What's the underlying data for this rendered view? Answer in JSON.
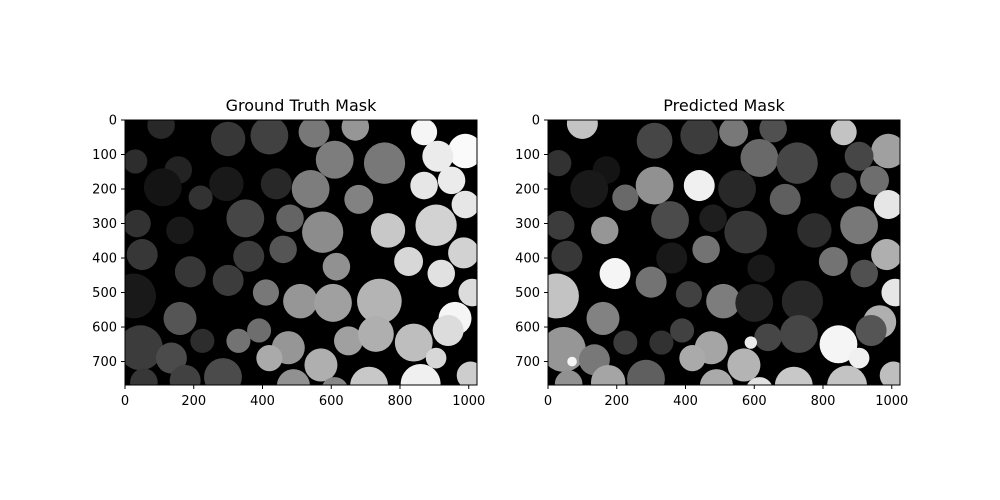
{
  "chart_data": [
    {
      "type": "heatmap",
      "title": "Ground Truth Mask",
      "xlabel": "",
      "ylabel": "",
      "xlim": [
        0,
        1024
      ],
      "ylim": [
        768,
        0
      ],
      "x_ticks": [
        0,
        200,
        400,
        600,
        800,
        1000
      ],
      "y_ticks": [
        0,
        100,
        200,
        300,
        400,
        500,
        600,
        700
      ],
      "colormap": "gray",
      "background_value": 0,
      "objects": [
        {
          "x": 105,
          "y": 15,
          "r": 40,
          "v": 40
        },
        {
          "x": 300,
          "y": 55,
          "r": 50,
          "v": 55
        },
        {
          "x": 420,
          "y": 45,
          "r": 55,
          "v": 65
        },
        {
          "x": 550,
          "y": 35,
          "r": 45,
          "v": 120
        },
        {
          "x": 670,
          "y": 20,
          "r": 40,
          "v": 150
        },
        {
          "x": 870,
          "y": 35,
          "r": 38,
          "v": 245
        },
        {
          "x": 990,
          "y": 90,
          "r": 50,
          "v": 250
        },
        {
          "x": 30,
          "y": 120,
          "r": 35,
          "v": 45
        },
        {
          "x": 155,
          "y": 145,
          "r": 40,
          "v": 35
        },
        {
          "x": 610,
          "y": 115,
          "r": 55,
          "v": 125
        },
        {
          "x": 755,
          "y": 125,
          "r": 60,
          "v": 120
        },
        {
          "x": 910,
          "y": 105,
          "r": 45,
          "v": 235
        },
        {
          "x": 110,
          "y": 195,
          "r": 55,
          "v": 20
        },
        {
          "x": 295,
          "y": 185,
          "r": 50,
          "v": 25
        },
        {
          "x": 440,
          "y": 185,
          "r": 45,
          "v": 40
        },
        {
          "x": 540,
          "y": 200,
          "r": 55,
          "v": 125
        },
        {
          "x": 870,
          "y": 190,
          "r": 40,
          "v": 230
        },
        {
          "x": 950,
          "y": 175,
          "r": 40,
          "v": 235
        },
        {
          "x": 220,
          "y": 225,
          "r": 35,
          "v": 50
        },
        {
          "x": 680,
          "y": 230,
          "r": 42,
          "v": 130
        },
        {
          "x": 990,
          "y": 245,
          "r": 40,
          "v": 230
        },
        {
          "x": 35,
          "y": 300,
          "r": 40,
          "v": 50
        },
        {
          "x": 160,
          "y": 320,
          "r": 40,
          "v": 25
        },
        {
          "x": 350,
          "y": 285,
          "r": 55,
          "v": 70
        },
        {
          "x": 480,
          "y": 285,
          "r": 40,
          "v": 100
        },
        {
          "x": 575,
          "y": 325,
          "r": 60,
          "v": 140
        },
        {
          "x": 765,
          "y": 320,
          "r": 50,
          "v": 200
        },
        {
          "x": 905,
          "y": 305,
          "r": 60,
          "v": 210
        },
        {
          "x": 50,
          "y": 390,
          "r": 45,
          "v": 55
        },
        {
          "x": 360,
          "y": 395,
          "r": 45,
          "v": 60
        },
        {
          "x": 460,
          "y": 375,
          "r": 40,
          "v": 85
        },
        {
          "x": 825,
          "y": 410,
          "r": 42,
          "v": 215
        },
        {
          "x": 985,
          "y": 385,
          "r": 45,
          "v": 210
        },
        {
          "x": 190,
          "y": 440,
          "r": 45,
          "v": 55
        },
        {
          "x": 300,
          "y": 465,
          "r": 45,
          "v": 60
        },
        {
          "x": 615,
          "y": 425,
          "r": 40,
          "v": 145
        },
        {
          "x": 920,
          "y": 445,
          "r": 40,
          "v": 225
        },
        {
          "x": 25,
          "y": 510,
          "r": 65,
          "v": 25
        },
        {
          "x": 410,
          "y": 500,
          "r": 38,
          "v": 120
        },
        {
          "x": 510,
          "y": 525,
          "r": 50,
          "v": 150
        },
        {
          "x": 605,
          "y": 530,
          "r": 55,
          "v": 160
        },
        {
          "x": 740,
          "y": 525,
          "r": 65,
          "v": 180
        },
        {
          "x": 1010,
          "y": 500,
          "r": 40,
          "v": 220
        },
        {
          "x": 160,
          "y": 575,
          "r": 48,
          "v": 85
        },
        {
          "x": 475,
          "y": 660,
          "r": 48,
          "v": 150
        },
        {
          "x": 650,
          "y": 640,
          "r": 42,
          "v": 160
        },
        {
          "x": 730,
          "y": 620,
          "r": 52,
          "v": 175
        },
        {
          "x": 960,
          "y": 575,
          "r": 48,
          "v": 245
        },
        {
          "x": 45,
          "y": 660,
          "r": 65,
          "v": 60
        },
        {
          "x": 225,
          "y": 640,
          "r": 35,
          "v": 45
        },
        {
          "x": 330,
          "y": 640,
          "r": 35,
          "v": 115
        },
        {
          "x": 390,
          "y": 610,
          "r": 35,
          "v": 110
        },
        {
          "x": 840,
          "y": 645,
          "r": 55,
          "v": 190
        },
        {
          "x": 940,
          "y": 610,
          "r": 45,
          "v": 220
        },
        {
          "x": 135,
          "y": 690,
          "r": 45,
          "v": 75
        },
        {
          "x": 420,
          "y": 690,
          "r": 38,
          "v": 170
        },
        {
          "x": 570,
          "y": 710,
          "r": 48,
          "v": 175
        },
        {
          "x": 905,
          "y": 690,
          "r": 30,
          "v": 215
        },
        {
          "x": 285,
          "y": 745,
          "r": 55,
          "v": 75
        },
        {
          "x": 175,
          "y": 755,
          "r": 45,
          "v": 65
        },
        {
          "x": 490,
          "y": 770,
          "r": 48,
          "v": 145
        },
        {
          "x": 710,
          "y": 770,
          "r": 55,
          "v": 200
        },
        {
          "x": 860,
          "y": 765,
          "r": 58,
          "v": 240
        },
        {
          "x": 1005,
          "y": 740,
          "r": 40,
          "v": 205
        },
        {
          "x": 610,
          "y": 785,
          "r": 40,
          "v": 135
        },
        {
          "x": 55,
          "y": 760,
          "r": 40,
          "v": 55
        }
      ]
    },
    {
      "type": "heatmap",
      "title": "Predicted Mask",
      "xlabel": "",
      "ylabel": "",
      "xlim": [
        0,
        1024
      ],
      "ylim": [
        768,
        0
      ],
      "x_ticks": [
        0,
        200,
        400,
        600,
        800,
        1000
      ],
      "y_ticks": [
        0,
        100,
        200,
        300,
        400,
        500,
        600,
        700
      ],
      "colormap": "gray",
      "background_value": 0,
      "objects": [
        {
          "x": 100,
          "y": 10,
          "r": 45,
          "v": 195
        },
        {
          "x": 310,
          "y": 60,
          "r": 52,
          "v": 70
        },
        {
          "x": 440,
          "y": 45,
          "r": 55,
          "v": 60
        },
        {
          "x": 540,
          "y": 35,
          "r": 42,
          "v": 120
        },
        {
          "x": 655,
          "y": 25,
          "r": 40,
          "v": 80
        },
        {
          "x": 860,
          "y": 35,
          "r": 38,
          "v": 195
        },
        {
          "x": 990,
          "y": 90,
          "r": 50,
          "v": 160
        },
        {
          "x": 30,
          "y": 125,
          "r": 38,
          "v": 50
        },
        {
          "x": 170,
          "y": 145,
          "r": 40,
          "v": 20
        },
        {
          "x": 615,
          "y": 110,
          "r": 55,
          "v": 105
        },
        {
          "x": 725,
          "y": 125,
          "r": 60,
          "v": 70
        },
        {
          "x": 905,
          "y": 105,
          "r": 42,
          "v": 70
        },
        {
          "x": 120,
          "y": 200,
          "r": 55,
          "v": 25
        },
        {
          "x": 310,
          "y": 190,
          "r": 55,
          "v": 145
        },
        {
          "x": 440,
          "y": 190,
          "r": 45,
          "v": 240
        },
        {
          "x": 550,
          "y": 200,
          "r": 55,
          "v": 40
        },
        {
          "x": 860,
          "y": 190,
          "r": 38,
          "v": 75
        },
        {
          "x": 950,
          "y": 175,
          "r": 42,
          "v": 110
        },
        {
          "x": 225,
          "y": 225,
          "r": 38,
          "v": 105
        },
        {
          "x": 690,
          "y": 230,
          "r": 45,
          "v": 95
        },
        {
          "x": 990,
          "y": 245,
          "r": 42,
          "v": 230
        },
        {
          "x": 35,
          "y": 305,
          "r": 42,
          "v": 60
        },
        {
          "x": 165,
          "y": 320,
          "r": 40,
          "v": 150
        },
        {
          "x": 355,
          "y": 290,
          "r": 55,
          "v": 75
        },
        {
          "x": 480,
          "y": 285,
          "r": 40,
          "v": 30
        },
        {
          "x": 575,
          "y": 325,
          "r": 62,
          "v": 55
        },
        {
          "x": 775,
          "y": 320,
          "r": 50,
          "v": 45
        },
        {
          "x": 905,
          "y": 305,
          "r": 55,
          "v": 120
        },
        {
          "x": 55,
          "y": 395,
          "r": 45,
          "v": 55
        },
        {
          "x": 360,
          "y": 400,
          "r": 45,
          "v": 25
        },
        {
          "x": 460,
          "y": 375,
          "r": 40,
          "v": 115
        },
        {
          "x": 830,
          "y": 410,
          "r": 42,
          "v": 115
        },
        {
          "x": 985,
          "y": 390,
          "r": 45,
          "v": 175
        },
        {
          "x": 195,
          "y": 445,
          "r": 45,
          "v": 245
        },
        {
          "x": 300,
          "y": 470,
          "r": 45,
          "v": 115
        },
        {
          "x": 620,
          "y": 430,
          "r": 40,
          "v": 25
        },
        {
          "x": 920,
          "y": 445,
          "r": 40,
          "v": 80
        },
        {
          "x": 25,
          "y": 510,
          "r": 65,
          "v": 195
        },
        {
          "x": 410,
          "y": 505,
          "r": 38,
          "v": 65
        },
        {
          "x": 510,
          "y": 525,
          "r": 50,
          "v": 125
        },
        {
          "x": 600,
          "y": 530,
          "r": 55,
          "v": 35
        },
        {
          "x": 740,
          "y": 525,
          "r": 60,
          "v": 40
        },
        {
          "x": 1010,
          "y": 500,
          "r": 40,
          "v": 230
        },
        {
          "x": 160,
          "y": 575,
          "r": 48,
          "v": 130
        },
        {
          "x": 475,
          "y": 660,
          "r": 48,
          "v": 165
        },
        {
          "x": 640,
          "y": 630,
          "r": 40,
          "v": 70
        },
        {
          "x": 730,
          "y": 620,
          "r": 55,
          "v": 70
        },
        {
          "x": 965,
          "y": 585,
          "r": 48,
          "v": 175
        },
        {
          "x": 45,
          "y": 665,
          "r": 65,
          "v": 150
        },
        {
          "x": 225,
          "y": 645,
          "r": 35,
          "v": 60
        },
        {
          "x": 330,
          "y": 645,
          "r": 35,
          "v": 50
        },
        {
          "x": 390,
          "y": 610,
          "r": 35,
          "v": 65
        },
        {
          "x": 845,
          "y": 650,
          "r": 55,
          "v": 245
        },
        {
          "x": 940,
          "y": 610,
          "r": 45,
          "v": 85
        },
        {
          "x": 135,
          "y": 695,
          "r": 45,
          "v": 120
        },
        {
          "x": 420,
          "y": 690,
          "r": 38,
          "v": 170
        },
        {
          "x": 570,
          "y": 710,
          "r": 48,
          "v": 180
        },
        {
          "x": 905,
          "y": 690,
          "r": 30,
          "v": 240
        },
        {
          "x": 285,
          "y": 750,
          "r": 55,
          "v": 95
        },
        {
          "x": 175,
          "y": 760,
          "r": 50,
          "v": 165
        },
        {
          "x": 490,
          "y": 770,
          "r": 48,
          "v": 170
        },
        {
          "x": 715,
          "y": 770,
          "r": 55,
          "v": 200
        },
        {
          "x": 870,
          "y": 770,
          "r": 58,
          "v": 195
        },
        {
          "x": 1005,
          "y": 740,
          "r": 40,
          "v": 190
        },
        {
          "x": 615,
          "y": 785,
          "r": 40,
          "v": 225
        },
        {
          "x": 60,
          "y": 765,
          "r": 40,
          "v": 145
        },
        {
          "x": 590,
          "y": 645,
          "r": 18,
          "v": 235
        },
        {
          "x": 70,
          "y": 700,
          "r": 14,
          "v": 245
        }
      ]
    }
  ]
}
